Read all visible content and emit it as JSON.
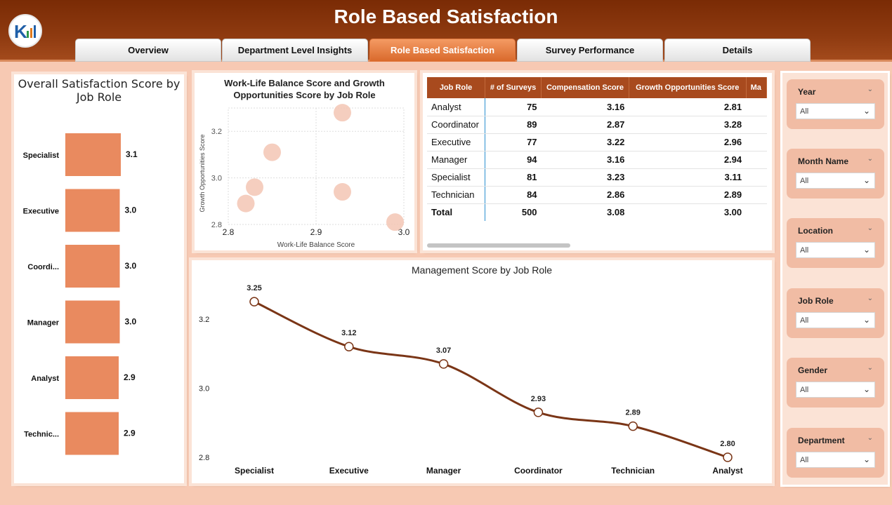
{
  "header": {
    "title": "Role Based Satisfaction"
  },
  "tabs": [
    {
      "label": "Overview",
      "active": false
    },
    {
      "label": "Department Level Insights",
      "active": false
    },
    {
      "label": "Role Based Satisfaction",
      "active": true
    },
    {
      "label": "Survey Performance",
      "active": false
    },
    {
      "label": "Details",
      "active": false
    }
  ],
  "colors": {
    "header": "#7a2b05",
    "accent": "#d96a2c",
    "bar": "#e98a5f",
    "bubble": "#f3c6b4",
    "line": "#7a3516",
    "background": "#f7c9b3"
  },
  "bar_chart": {
    "title": "Overall Satisfaction Score by Job Role",
    "chart_data": {
      "type": "bar",
      "orientation": "horizontal",
      "categories": [
        "Specialist",
        "Executive",
        "Coordi...",
        "Manager",
        "Analyst",
        "Technic..."
      ],
      "values": [
        3.1,
        3.0,
        3.0,
        3.0,
        2.9,
        2.9
      ],
      "value_labels": [
        "3.1",
        "3.0",
        "3.0",
        "3.0",
        "2.9",
        "2.9"
      ]
    }
  },
  "scatter_chart": {
    "title": "Work-Life Balance Score and Growth Opportunities Score by Job Role",
    "chart_data": {
      "type": "scatter",
      "xlabel": "Work-Life Balance Score",
      "ylabel": "Growth Opportunities Score",
      "xlim": [
        2.8,
        3.0
      ],
      "ylim": [
        2.8,
        3.3
      ],
      "x_ticks": [
        "2.8",
        "2.9",
        "3.0"
      ],
      "y_ticks": [
        "3.2",
        "3.0",
        "2.8"
      ],
      "grid": true,
      "points": [
        {
          "x": 2.93,
          "y": 3.28
        },
        {
          "x": 2.85,
          "y": 3.11
        },
        {
          "x": 2.83,
          "y": 2.96
        },
        {
          "x": 2.82,
          "y": 2.89
        },
        {
          "x": 2.93,
          "y": 2.94
        },
        {
          "x": 2.99,
          "y": 2.81
        }
      ]
    }
  },
  "table": {
    "columns": [
      "Job Role",
      "# of Surveys",
      "Compensation Score",
      "Growth Opportunities Score",
      "Ma"
    ],
    "rows": [
      {
        "role": "Analyst",
        "surveys": "75",
        "comp": "3.16",
        "growth": "2.81"
      },
      {
        "role": "Coordinator",
        "surveys": "89",
        "comp": "2.87",
        "growth": "3.28"
      },
      {
        "role": "Executive",
        "surveys": "77",
        "comp": "3.22",
        "growth": "2.96"
      },
      {
        "role": "Manager",
        "surveys": "94",
        "comp": "3.16",
        "growth": "2.94"
      },
      {
        "role": "Specialist",
        "surveys": "81",
        "comp": "3.23",
        "growth": "3.11"
      },
      {
        "role": "Technician",
        "surveys": "84",
        "comp": "2.86",
        "growth": "2.89"
      }
    ],
    "total": {
      "role": "Total",
      "surveys": "500",
      "comp": "3.08",
      "growth": "3.00"
    }
  },
  "line_chart": {
    "title": "Management Score by Job Role",
    "chart_data": {
      "type": "line",
      "categories": [
        "Specialist",
        "Executive",
        "Manager",
        "Coordinator",
        "Technician",
        "Analyst"
      ],
      "values": [
        3.25,
        3.12,
        3.07,
        2.93,
        2.89,
        2.8
      ],
      "value_labels": [
        "3.25",
        "3.12",
        "3.07",
        "2.93",
        "2.89",
        "2.80"
      ],
      "y_ticks": [
        "3.2",
        "3.0",
        "2.8"
      ],
      "ylim": [
        2.8,
        3.25
      ]
    }
  },
  "slicers": [
    {
      "label": "Year",
      "value": "All"
    },
    {
      "label": "Month Name",
      "value": "All"
    },
    {
      "label": "Location",
      "value": "All"
    },
    {
      "label": "Job Role",
      "value": "All"
    },
    {
      "label": "Gender",
      "value": "All"
    },
    {
      "label": "Department",
      "value": "All"
    }
  ]
}
